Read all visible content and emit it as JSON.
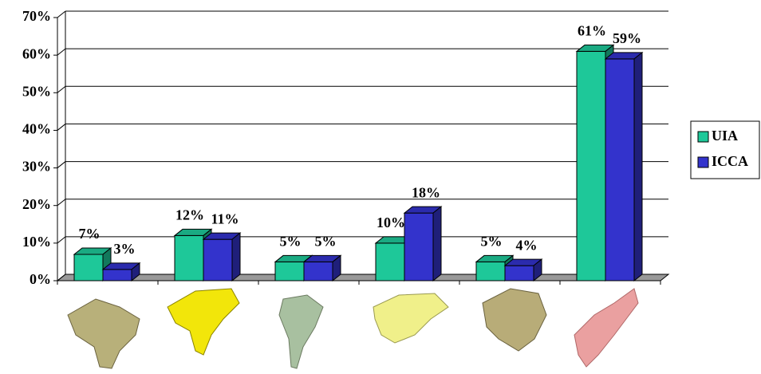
{
  "chart_data": {
    "type": "bar3d",
    "categories": [
      null,
      null,
      null,
      null,
      null,
      null
    ],
    "series": [
      {
        "name": "UIA",
        "color": "#1ec899",
        "values": [
          7,
          12,
          5,
          10,
          5,
          61
        ],
        "value_labels": [
          "7%",
          "12%",
          "5%",
          "10%",
          "5%",
          "61%"
        ]
      },
      {
        "name": "ICCA",
        "color": "#3333cc",
        "values": [
          3,
          11,
          5,
          18,
          4,
          59
        ],
        "value_labels": [
          "3%",
          "11%",
          "5%",
          "18%",
          "4%",
          "59%"
        ]
      }
    ],
    "ylim": [
      0,
      70
    ],
    "yticks": [
      {
        "value": 0,
        "label": "0%"
      },
      {
        "value": 10,
        "label": "10%"
      },
      {
        "value": 20,
        "label": "20%"
      },
      {
        "value": 30,
        "label": "30%"
      },
      {
        "value": 40,
        "label": "40%"
      },
      {
        "value": 50,
        "label": "50%"
      },
      {
        "value": 60,
        "label": "60%"
      },
      {
        "value": 70,
        "label": "70%"
      }
    ],
    "grid": true,
    "legend": "right"
  }
}
